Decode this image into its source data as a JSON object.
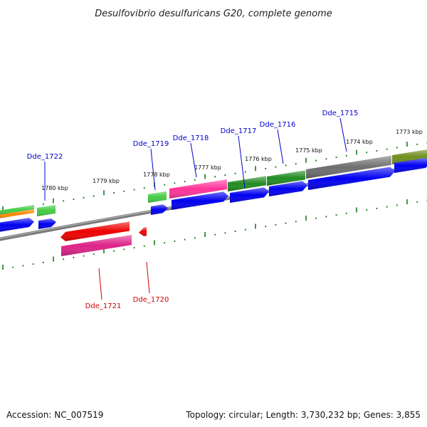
{
  "title": "Desulfovibrio desulfuricans G20, complete genome",
  "footer": {
    "accession": "Accession: NC_007519",
    "summary": "Topology: circular; Length: 3,730,232 bp; Genes: 3,855"
  },
  "colors": {
    "backbone": "#808080",
    "tick": "#1a7a1a",
    "forward_label": "#0000cc",
    "reverse_label": "#cc0000",
    "blue": "#0000f0",
    "green": "#228b22",
    "light_green": "#44cc44",
    "pink": "#ff3399",
    "magenta": "#dd2288",
    "red": "#ee0000",
    "gray": "#6e6e6e",
    "olive": "#6f8f1f",
    "orange": "#ff8800"
  },
  "tick_labels": [
    "1780 kbp",
    "1779 kbp",
    "1778 kbp",
    "1777 kbp",
    "1776 kbp",
    "1775 kbp",
    "1774 kbp",
    "1773 kbp"
  ],
  "gene_labels": {
    "forward": [
      "Dde_1722",
      "Dde_1719",
      "Dde_1718",
      "Dde_1717",
      "Dde_1716",
      "Dde_1715"
    ],
    "reverse": [
      "Dde_1721",
      "Dde_1720"
    ]
  }
}
